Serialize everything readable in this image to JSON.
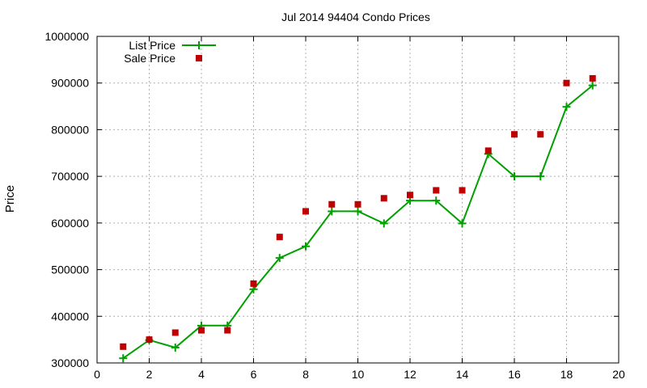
{
  "colors": {
    "list_line": "#00a000",
    "sale_marker": "#c00000",
    "grid": "#b0b0b0",
    "axis": "#000000"
  },
  "chart_data": {
    "type": "line",
    "title": "Jul 2014 94404 Condo Prices",
    "xlabel": "",
    "ylabel": "Price",
    "xlim": [
      0,
      20
    ],
    "ylim": [
      300000,
      1000000
    ],
    "x_ticks": [
      0,
      2,
      4,
      6,
      8,
      10,
      12,
      14,
      16,
      18,
      20
    ],
    "y_ticks": [
      300000,
      400000,
      500000,
      600000,
      700000,
      800000,
      900000,
      1000000
    ],
    "grid": true,
    "legend_position": "top-left",
    "series": [
      {
        "name": "List Price",
        "style": "line-with-plus-markers",
        "x": [
          1,
          2,
          3,
          4,
          5,
          6,
          7,
          8,
          9,
          10,
          11,
          12,
          13,
          14,
          15,
          16,
          17,
          18,
          19
        ],
        "values": [
          310000,
          349000,
          333000,
          380000,
          380000,
          458000,
          525000,
          550000,
          625000,
          625000,
          599000,
          648000,
          648000,
          599000,
          748000,
          700000,
          700000,
          849000,
          895000
        ]
      },
      {
        "name": "Sale Price",
        "style": "square-markers",
        "x": [
          1,
          2,
          3,
          4,
          5,
          6,
          7,
          8,
          9,
          10,
          11,
          12,
          13,
          14,
          15,
          16,
          17,
          18,
          19
        ],
        "values": [
          335000,
          350000,
          365000,
          370000,
          370000,
          470000,
          570000,
          625000,
          640000,
          640000,
          653000,
          660000,
          670000,
          670000,
          755000,
          790000,
          790000,
          900000,
          910000
        ]
      }
    ]
  }
}
